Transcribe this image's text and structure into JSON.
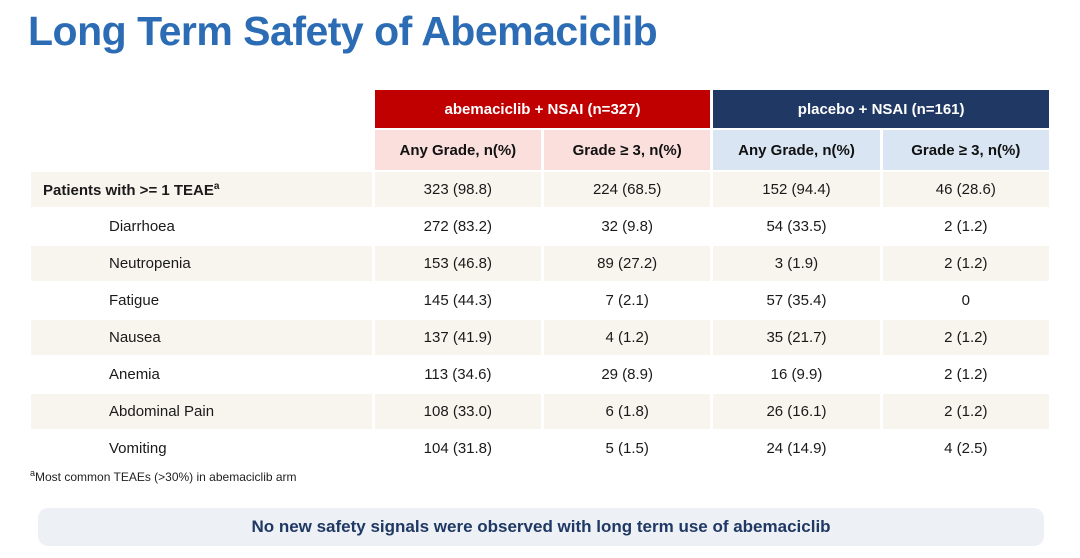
{
  "slide": {
    "title": "Long Term Safety of Abemaciclib",
    "footnote_sup": "a",
    "footnote": "Most common TEAEs (>30%) in abemaciclib arm",
    "banner": "No new safety signals were observed with long term use of abemaciclib"
  },
  "colors": {
    "title": "#2b6cb4",
    "red": "#c00000",
    "navy": "#1f3864",
    "pink": "#fbdfdd",
    "lightblue": "#d9e5f3",
    "stripe": "#f8f5ef",
    "banner": "#edf0f4"
  },
  "table": {
    "arm_headers": [
      {
        "label": "abemaciclib + NSAI (n=327)"
      },
      {
        "label": "placebo + NSAI (n=161)"
      }
    ],
    "sub_headers": [
      "Any Grade, n(%)",
      "Grade ≥ 3, n(%)",
      "Any Grade, n(%)",
      "Grade ≥ 3, n(%)"
    ],
    "rows": [
      {
        "label": "Patients with >= 1 TEAE",
        "label_sup": "a",
        "values": [
          "323 (98.8)",
          "224 (68.5)",
          "152 (94.4)",
          "46 (28.6)"
        ]
      },
      {
        "label": "Diarrhoea",
        "values": [
          "272 (83.2)",
          "32 (9.8)",
          "54 (33.5)",
          "2 (1.2)"
        ]
      },
      {
        "label": "Neutropenia",
        "values": [
          "153 (46.8)",
          "89 (27.2)",
          "3 (1.9)",
          "2 (1.2)"
        ]
      },
      {
        "label": "Fatigue",
        "values": [
          "145 (44.3)",
          "7 (2.1)",
          "57 (35.4)",
          "0"
        ]
      },
      {
        "label": "Nausea",
        "values": [
          "137 (41.9)",
          "4 (1.2)",
          "35 (21.7)",
          "2 (1.2)"
        ]
      },
      {
        "label": "Anemia",
        "values": [
          "113 (34.6)",
          "29 (8.9)",
          "16 (9.9)",
          "2 (1.2)"
        ]
      },
      {
        "label": "Abdominal Pain",
        "values": [
          "108 (33.0)",
          "6 (1.8)",
          "26 (16.1)",
          "2 (1.2)"
        ]
      },
      {
        "label": "Vomiting",
        "values": [
          "104 (31.8)",
          "5 (1.5)",
          "24 (14.9)",
          "4 (2.5)"
        ]
      }
    ]
  }
}
